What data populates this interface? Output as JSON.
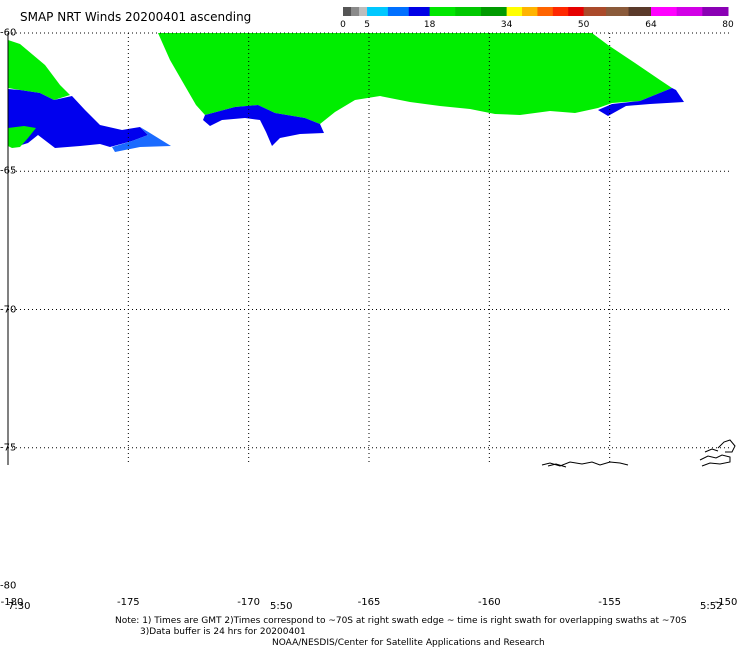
{
  "title": "SMAP NRT Winds 20200401 ascending",
  "colorbar": {
    "labels": [
      "0",
      "5",
      "18",
      "34",
      "50",
      "64",
      "80"
    ],
    "segments": [
      {
        "from": 0,
        "to": 5,
        "colors": [
          "#555555",
          "#8a8a8a",
          "#bdbdbd"
        ]
      },
      {
        "from": 5,
        "to": 18,
        "colors": [
          "#00c8ff",
          "#0070ff",
          "#0000e6"
        ]
      },
      {
        "from": 18,
        "to": 34,
        "colors": [
          "#00e600",
          "#00c800",
          "#009a00"
        ]
      },
      {
        "from": 34,
        "to": 50,
        "colors": [
          "#ffff00",
          "#ffb400",
          "#ff6400",
          "#ff2800",
          "#e60000"
        ]
      },
      {
        "from": 50,
        "to": 64,
        "colors": [
          "#aa4a2a",
          "#8a5a3a",
          "#5a3a2a"
        ]
      },
      {
        "from": 64,
        "to": 80,
        "colors": [
          "#ff00ff",
          "#d200e6",
          "#8a00b4"
        ]
      }
    ]
  },
  "lat_labels": [
    {
      "value": -60,
      "text": "-60"
    },
    {
      "value": -65,
      "text": "-65"
    },
    {
      "value": -70,
      "text": "-70"
    },
    {
      "value": -75,
      "text": "-75"
    },
    {
      "value": -80,
      "text": "-80"
    }
  ],
  "lon_labels": [
    {
      "value": -180,
      "text": "-180"
    },
    {
      "value": -175,
      "text": "-175"
    },
    {
      "value": -170,
      "text": "-170"
    },
    {
      "value": -165,
      "text": "-165"
    },
    {
      "value": -160,
      "text": "-160"
    },
    {
      "value": -155,
      "text": "-155"
    },
    {
      "value": -150,
      "text": "-150"
    }
  ],
  "time_labels": [
    "7:30",
    "5:50",
    "5:52"
  ],
  "notes": {
    "line1": "Note: 1) Times are GMT 2)Times correspond to ~70S at right swath edge ~ time is right swath for overlapping swaths at ~70S",
    "line2": "3)Data buffer is 24 hrs for 20200401",
    "line3": "NOAA/NESDIS/Center for Satellite Applications and Research"
  },
  "wind_colors": {
    "green": "#00ee00",
    "blue": "#0000ee",
    "light_blue": "#1a6bff",
    "coast": "#000000"
  }
}
